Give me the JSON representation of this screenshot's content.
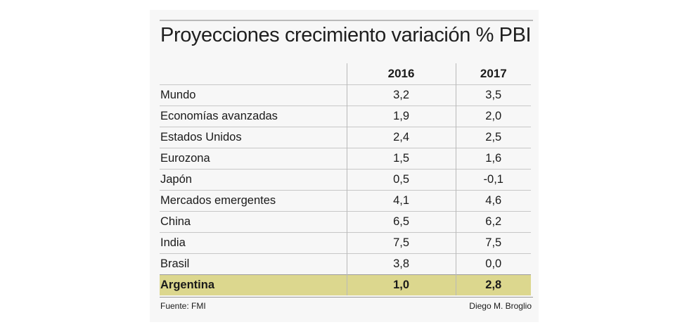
{
  "chart_data": {
    "type": "table",
    "title": "Proyecciones crecimiento variación % PBI",
    "columns": [
      "",
      "2016",
      "2017"
    ],
    "rows": [
      {
        "label": "Mundo",
        "values": [
          "3,2",
          "3,5"
        ]
      },
      {
        "label": "Economías avanzadas",
        "values": [
          "1,9",
          "2,0"
        ]
      },
      {
        "label": "Estados Unidos",
        "values": [
          "2,4",
          "2,5"
        ]
      },
      {
        "label": "Eurozona",
        "values": [
          "1,5",
          "1,6"
        ]
      },
      {
        "label": "Japón",
        "values": [
          "0,5",
          "-0,1"
        ]
      },
      {
        "label": "Mercados emergentes",
        "values": [
          "4,1",
          "4,6"
        ]
      },
      {
        "label": "China",
        "values": [
          "6,5",
          "6,2"
        ]
      },
      {
        "label": "India",
        "values": [
          "7,5",
          "7,5"
        ]
      },
      {
        "label": "Brasil",
        "values": [
          "3,8",
          "0,0"
        ]
      },
      {
        "label": "Argentina",
        "values": [
          "1,0",
          "2,8"
        ],
        "highlight": true
      }
    ],
    "highlight_color": "#dcd78e"
  },
  "footer": {
    "source": "Fuente: FMI",
    "author": "Diego M. Broglio"
  }
}
